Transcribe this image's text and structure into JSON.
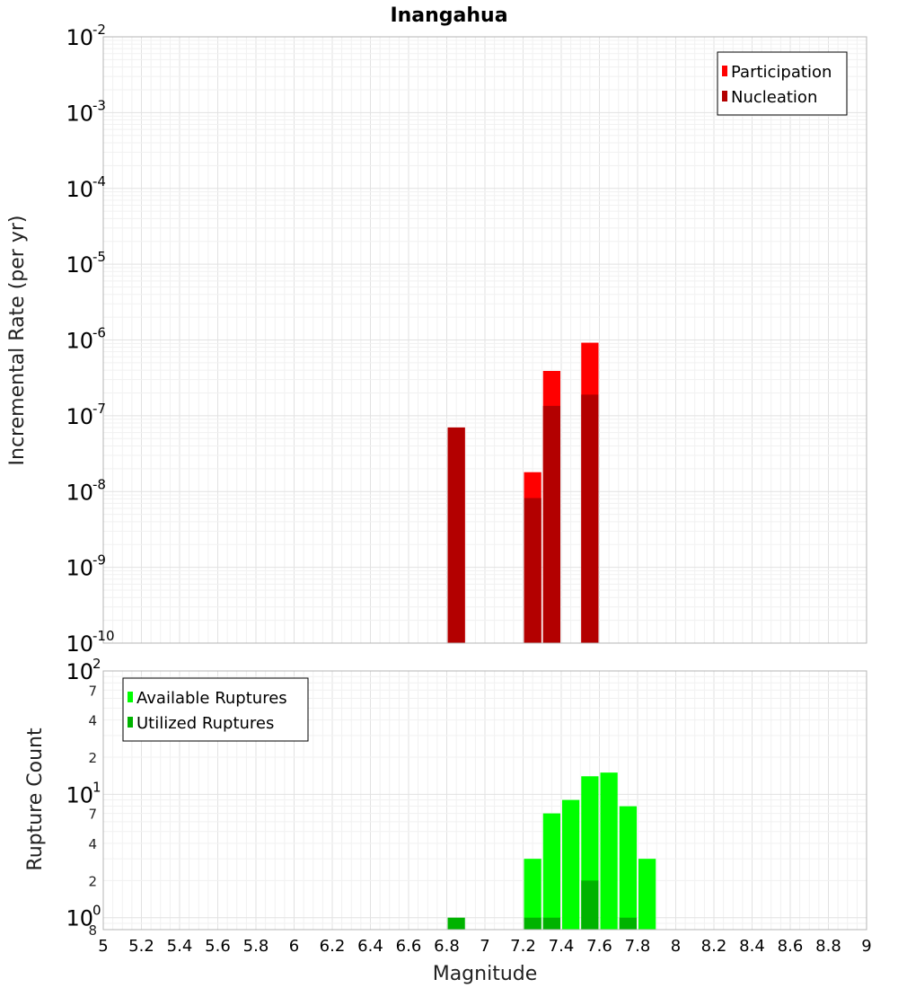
{
  "chart_data": [
    {
      "type": "bar",
      "title": "Inangahua",
      "ylabel": "Incremental Rate (per yr)",
      "xlabel": "",
      "yscale": "log",
      "ylim": [
        1e-10,
        0.01
      ],
      "xlim": [
        5,
        9
      ],
      "bin_width": 0.1,
      "y_tick_labels": [
        {
          "value": 0.01,
          "base": "10",
          "exp": "-2"
        },
        {
          "value": 0.001,
          "base": "10",
          "exp": "-3"
        },
        {
          "value": 0.0001,
          "base": "10",
          "exp": "-4"
        },
        {
          "value": 1e-05,
          "base": "10",
          "exp": "-5"
        },
        {
          "value": 1e-06,
          "base": "10",
          "exp": "-6"
        },
        {
          "value": 1e-07,
          "base": "10",
          "exp": "-7"
        },
        {
          "value": 1e-08,
          "base": "10",
          "exp": "-8"
        },
        {
          "value": 1e-09,
          "base": "10",
          "exp": "-9"
        },
        {
          "value": 1e-10,
          "base": "10",
          "exp": "-10"
        }
      ],
      "legend_position": "top-right",
      "series": [
        {
          "name": "Participation",
          "color": "#ff0000",
          "points": [
            {
              "x": 6.85,
              "y": 7e-08
            },
            {
              "x": 7.25,
              "y": 1.8e-08
            },
            {
              "x": 7.35,
              "y": 3.9e-07
            },
            {
              "x": 7.55,
              "y": 9.2e-07
            }
          ]
        },
        {
          "name": "Nucleation",
          "color": "#b30000",
          "points": [
            {
              "x": 6.85,
              "y": 7e-08
            },
            {
              "x": 7.25,
              "y": 8.2e-09
            },
            {
              "x": 7.35,
              "y": 1.35e-07
            },
            {
              "x": 7.55,
              "y": 1.9e-07
            }
          ]
        }
      ]
    },
    {
      "type": "bar",
      "title": "",
      "ylabel": "Rupture Count",
      "xlabel": "Magnitude",
      "yscale": "log",
      "ylim": [
        0.8,
        100
      ],
      "xlim": [
        5,
        9
      ],
      "bin_width": 0.1,
      "x_ticks": [
        "5",
        "5.2",
        "5.4",
        "5.6",
        "5.8",
        "6",
        "6.2",
        "6.4",
        "6.6",
        "6.8",
        "7",
        "7.2",
        "7.4",
        "7.6",
        "7.8",
        "8",
        "8.2",
        "8.4",
        "8.6",
        "8.8",
        "9"
      ],
      "y_major_tick_labels": [
        {
          "value": 100,
          "base": "10",
          "exp": "2"
        },
        {
          "value": 10,
          "base": "10",
          "exp": "1"
        },
        {
          "value": 1,
          "base": "10",
          "exp": "0"
        }
      ],
      "y_minor_tick_labels": [
        {
          "value": 70,
          "label": "7"
        },
        {
          "value": 40,
          "label": "4"
        },
        {
          "value": 20,
          "label": "2"
        },
        {
          "value": 7,
          "label": "7"
        },
        {
          "value": 4,
          "label": "4"
        },
        {
          "value": 2,
          "label": "2"
        },
        {
          "value": 0.8,
          "label": "8"
        }
      ],
      "legend_position": "top-left",
      "series": [
        {
          "name": "Available Ruptures",
          "color": "#00ff00",
          "points": [
            {
              "x": 7.25,
              "y": 3
            },
            {
              "x": 7.35,
              "y": 7
            },
            {
              "x": 7.45,
              "y": 9
            },
            {
              "x": 7.55,
              "y": 14
            },
            {
              "x": 7.65,
              "y": 15
            },
            {
              "x": 7.75,
              "y": 8
            },
            {
              "x": 7.85,
              "y": 3
            }
          ]
        },
        {
          "name": "Utilized Ruptures",
          "color": "#00b300",
          "points": [
            {
              "x": 6.85,
              "y": 1
            },
            {
              "x": 7.25,
              "y": 1
            },
            {
              "x": 7.35,
              "y": 1
            },
            {
              "x": 7.55,
              "y": 2
            },
            {
              "x": 7.75,
              "y": 1
            }
          ]
        }
      ]
    }
  ]
}
